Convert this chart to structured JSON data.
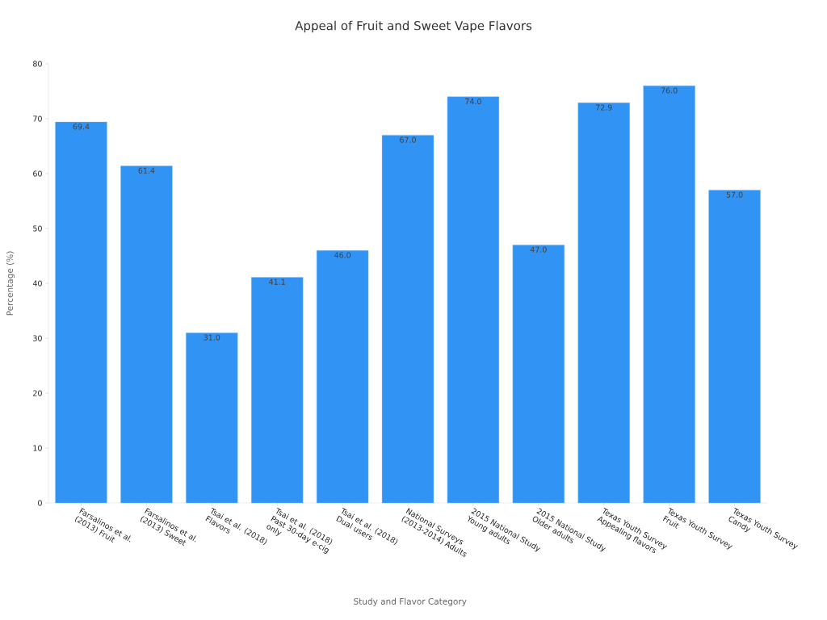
{
  "chart_data": {
    "type": "bar",
    "title": "Appeal of Fruit and Sweet Vape Flavors",
    "xlabel": "Study and Flavor Category",
    "ylabel": "Percentage (%)",
    "categories": [
      "Farsalinos et al. (2013) Fruit",
      "Farsalinos et al. (2013) Sweet",
      "Tsai et al. (2018) Flavors",
      "Tsai et al. (2018) Past 30-day e-cig only",
      "Tsai et al. (2018) Dual users",
      "National Surveys (2013-2014) Adults",
      "2015 National Study Young adults",
      "2015 National Study Older adults",
      "Texas Youth Survey Appealing flavors",
      "Texas Youth Survey Fruit",
      "Texas Youth Survey Candy"
    ],
    "values": [
      69.4,
      61.4,
      31.0,
      41.1,
      46.0,
      67.0,
      74.0,
      47.0,
      72.9,
      76.0,
      57.0
    ],
    "value_labels": [
      "69.4",
      "61.4",
      "31.0",
      "41.1",
      "46.0",
      "67.0",
      "74.0",
      "47.0",
      "72.9",
      "76.0",
      "57.0"
    ],
    "color": "#3194f5",
    "ylim": [
      0,
      80
    ],
    "yticks": [
      0,
      10,
      20,
      30,
      40,
      50,
      60,
      70,
      80
    ]
  }
}
